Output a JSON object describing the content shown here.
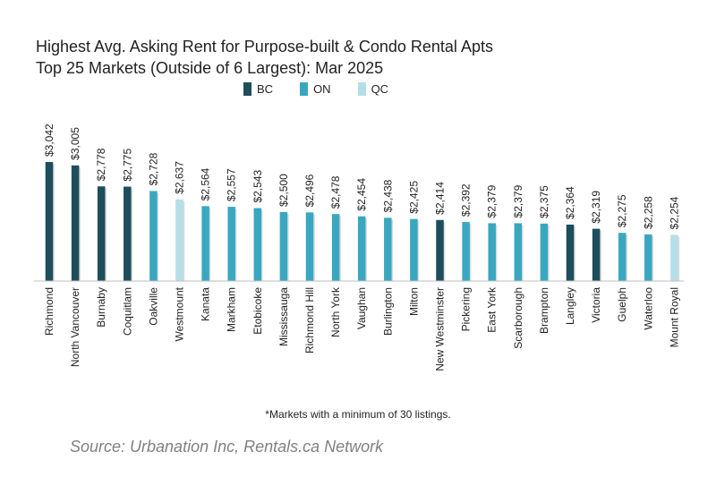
{
  "chart_data": {
    "type": "bar",
    "title_line1": "Highest Avg. Asking Rent for Purpose-built & Condo Rental Apts",
    "title_line2": "Top 25 Markets (Outside of 6 Largest): Mar 2025",
    "ylim": [
      0,
      3042
    ],
    "legend": [
      {
        "key": "BC",
        "label": "BC",
        "color": "#1e4d5c"
      },
      {
        "key": "ON",
        "label": "ON",
        "color": "#3aa7c0"
      },
      {
        "key": "QC",
        "label": "QC",
        "color": "#b5dfe6"
      }
    ],
    "categories": [
      "Richmond",
      "North Vancouver",
      "Burnaby",
      "Coquitlam",
      "Oakville",
      "Westmount",
      "Kanata",
      "Markham",
      "Etobicoke",
      "Mississauga",
      "Richmond Hill",
      "North York",
      "Vaughan",
      "Burlington",
      "Milton",
      "New Westminster",
      "Pickering",
      "East York",
      "Scarborough",
      "Brampton",
      "Langley",
      "Victoria",
      "Guelph",
      "Waterloo",
      "Mount Royal"
    ],
    "values": [
      3042,
      3005,
      2778,
      2775,
      2728,
      2637,
      2564,
      2557,
      2543,
      2500,
      2496,
      2478,
      2454,
      2438,
      2425,
      2414,
      2392,
      2379,
      2379,
      2375,
      2364,
      2319,
      2275,
      2258,
      2254
    ],
    "value_labels": [
      "$3,042",
      "$3,005",
      "$2,778",
      "$2,775",
      "$2,728",
      "$2,637",
      "$2,564",
      "$2,557",
      "$2,543",
      "$2,500",
      "$2,496",
      "$2,478",
      "$2,454",
      "$2,438",
      "$2,425",
      "$2,414",
      "$2,392",
      "$2,379",
      "$2,379",
      "$2,375",
      "$2,364",
      "$2,319",
      "$2,275",
      "$2,258",
      "$2,254"
    ],
    "province": [
      "BC",
      "BC",
      "BC",
      "BC",
      "ON",
      "QC",
      "ON",
      "ON",
      "ON",
      "ON",
      "ON",
      "ON",
      "ON",
      "ON",
      "ON",
      "BC",
      "ON",
      "ON",
      "ON",
      "ON",
      "BC",
      "BC",
      "ON",
      "ON",
      "QC"
    ],
    "footnote": "*Markets with a minimum of 30 listings.",
    "source": "Source: Urbanation Inc, Rentals.ca Network"
  }
}
